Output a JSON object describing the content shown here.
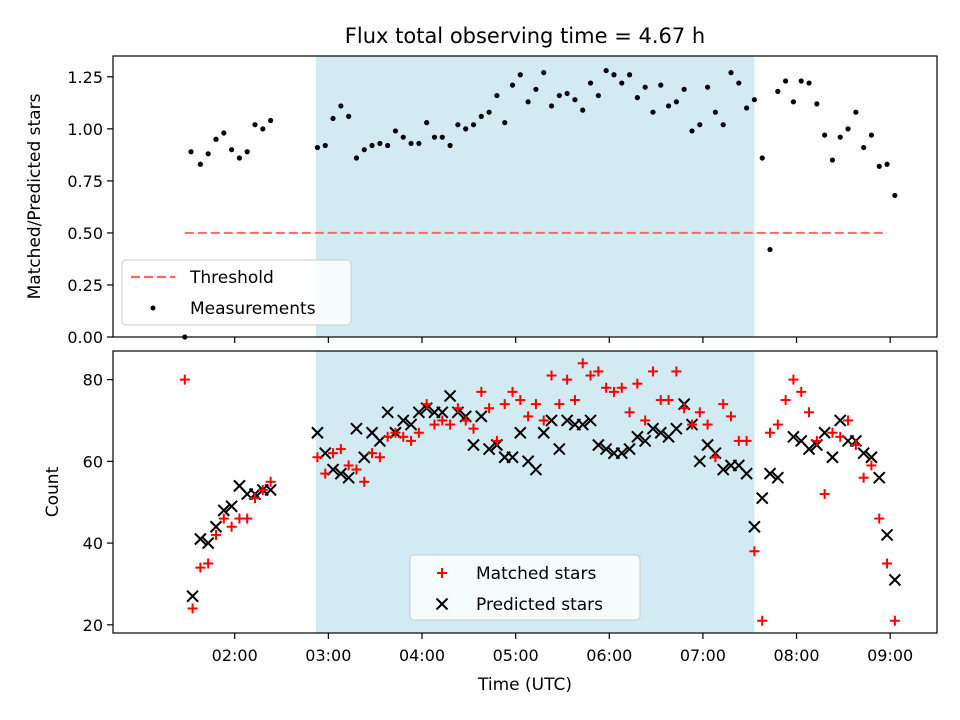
{
  "title": "Flux total observing time = 4.67 h",
  "colors": {
    "threshold": "#ff6666",
    "measurement": "#000000",
    "matched": "#ff0000",
    "predicted": "#000000",
    "shade": "#add8e6"
  },
  "chart_data": [
    {
      "type": "scatter",
      "ylabel": "Matched/Predicted stars",
      "ylim": [
        0,
        1.35
      ],
      "yticks": [
        "0.00",
        "0.25",
        "0.50",
        "0.75",
        "1.00",
        "1.25"
      ],
      "xlim_hours": [
        0.7,
        9.5
      ],
      "shaded_x": [
        "02:52",
        "07:33"
      ],
      "threshold": 0.5,
      "threshold_x": [
        "01:28",
        "08:58"
      ],
      "legend": {
        "location": "lower-left",
        "entries": [
          "Threshold",
          "Measurements"
        ]
      },
      "measurements": [
        [
          "01:28",
          0.0
        ],
        [
          "01:32",
          0.89
        ],
        [
          "01:38",
          0.83
        ],
        [
          "01:43",
          0.88
        ],
        [
          "01:48",
          0.95
        ],
        [
          "01:53",
          0.98
        ],
        [
          "01:58",
          0.9
        ],
        [
          "02:03",
          0.86
        ],
        [
          "02:08",
          0.89
        ],
        [
          "02:13",
          1.02
        ],
        [
          "02:18",
          1.0
        ],
        [
          "02:23",
          1.04
        ],
        [
          "02:53",
          0.91
        ],
        [
          "02:58",
          0.92
        ],
        [
          "03:03",
          1.05
        ],
        [
          "03:08",
          1.11
        ],
        [
          "03:13",
          1.06
        ],
        [
          "03:18",
          0.86
        ],
        [
          "03:23",
          0.9
        ],
        [
          "03:28",
          0.92
        ],
        [
          "03:33",
          0.93
        ],
        [
          "03:38",
          0.92
        ],
        [
          "03:43",
          0.99
        ],
        [
          "03:48",
          0.96
        ],
        [
          "03:53",
          0.93
        ],
        [
          "03:58",
          0.93
        ],
        [
          "04:03",
          1.03
        ],
        [
          "04:08",
          0.96
        ],
        [
          "04:13",
          0.96
        ],
        [
          "04:18",
          0.92
        ],
        [
          "04:23",
          1.02
        ],
        [
          "04:28",
          1.0
        ],
        [
          "04:33",
          1.02
        ],
        [
          "04:38",
          1.06
        ],
        [
          "04:43",
          1.08
        ],
        [
          "04:48",
          1.16
        ],
        [
          "04:53",
          1.03
        ],
        [
          "04:58",
          1.21
        ],
        [
          "05:03",
          1.26
        ],
        [
          "05:08",
          1.13
        ],
        [
          "05:13",
          1.19
        ],
        [
          "05:18",
          1.27
        ],
        [
          "05:23",
          1.11
        ],
        [
          "05:28",
          1.16
        ],
        [
          "05:33",
          1.17
        ],
        [
          "05:38",
          1.14
        ],
        [
          "05:43",
          1.09
        ],
        [
          "05:48",
          1.22
        ],
        [
          "05:53",
          1.16
        ],
        [
          "05:58",
          1.28
        ],
        [
          "06:03",
          1.26
        ],
        [
          "06:08",
          1.22
        ],
        [
          "06:13",
          1.26
        ],
        [
          "06:18",
          1.15
        ],
        [
          "06:23",
          1.2
        ],
        [
          "06:28",
          1.08
        ],
        [
          "06:33",
          1.21
        ],
        [
          "06:38",
          1.11
        ],
        [
          "06:43",
          1.13
        ],
        [
          "06:48",
          1.19
        ],
        [
          "06:53",
          0.99
        ],
        [
          "06:58",
          1.02
        ],
        [
          "07:03",
          1.2
        ],
        [
          "07:08",
          1.08
        ],
        [
          "07:13",
          1.02
        ],
        [
          "07:18",
          1.27
        ],
        [
          "07:23",
          1.22
        ],
        [
          "07:28",
          1.1
        ],
        [
          "07:33",
          1.14
        ],
        [
          "07:38",
          0.86
        ],
        [
          "07:43",
          0.42
        ],
        [
          "07:48",
          1.18
        ],
        [
          "07:53",
          1.23
        ],
        [
          "07:58",
          1.13
        ],
        [
          "08:03",
          1.23
        ],
        [
          "08:08",
          1.22
        ],
        [
          "08:13",
          1.12
        ],
        [
          "08:18",
          0.97
        ],
        [
          "08:23",
          0.85
        ],
        [
          "08:28",
          0.96
        ],
        [
          "08:33",
          1.0
        ],
        [
          "08:38",
          1.08
        ],
        [
          "08:43",
          0.91
        ],
        [
          "08:48",
          0.97
        ],
        [
          "08:53",
          0.82
        ],
        [
          "08:58",
          0.83
        ],
        [
          "09:03",
          0.68
        ]
      ]
    },
    {
      "type": "scatter",
      "xlabel": "Time (UTC)",
      "ylabel": "Count",
      "ylim": [
        18,
        87
      ],
      "yticks": [
        "20",
        "40",
        "60",
        "80"
      ],
      "xlim_hours": [
        0.7,
        9.5
      ],
      "xticks": [
        "02:00",
        "03:00",
        "04:00",
        "05:00",
        "06:00",
        "07:00",
        "08:00",
        "09:00"
      ],
      "shaded_x": [
        "02:52",
        "07:33"
      ],
      "legend": {
        "location": "lower-center",
        "entries": [
          "Matched stars",
          "Predicted stars"
        ]
      },
      "matched": [
        [
          "01:28",
          80
        ],
        [
          "01:33",
          24
        ],
        [
          "01:38",
          34
        ],
        [
          "01:43",
          35
        ],
        [
          "01:48",
          42
        ],
        [
          "01:53",
          46
        ],
        [
          "01:58",
          44
        ],
        [
          "02:03",
          46
        ],
        [
          "02:08",
          46
        ],
        [
          "02:13",
          51
        ],
        [
          "02:18",
          53
        ],
        [
          "02:23",
          55
        ],
        [
          "02:53",
          61
        ],
        [
          "02:58",
          57
        ],
        [
          "03:03",
          62
        ],
        [
          "03:08",
          63
        ],
        [
          "03:13",
          59
        ],
        [
          "03:18",
          58
        ],
        [
          "03:23",
          55
        ],
        [
          "03:28",
          62
        ],
        [
          "03:33",
          61
        ],
        [
          "03:38",
          66
        ],
        [
          "03:43",
          67
        ],
        [
          "03:48",
          66
        ],
        [
          "03:53",
          65
        ],
        [
          "03:58",
          67
        ],
        [
          "04:03",
          74
        ],
        [
          "04:08",
          69
        ],
        [
          "04:13",
          70
        ],
        [
          "04:18",
          69
        ],
        [
          "04:23",
          73
        ],
        [
          "04:28",
          70
        ],
        [
          "04:33",
          68
        ],
        [
          "04:38",
          77
        ],
        [
          "04:43",
          73
        ],
        [
          "04:48",
          65
        ],
        [
          "04:53",
          74
        ],
        [
          "04:58",
          77
        ],
        [
          "05:03",
          75
        ],
        [
          "05:08",
          71
        ],
        [
          "05:13",
          74
        ],
        [
          "05:18",
          70
        ],
        [
          "05:23",
          81
        ],
        [
          "05:28",
          74
        ],
        [
          "05:33",
          80
        ],
        [
          "05:38",
          75
        ],
        [
          "05:43",
          84
        ],
        [
          "05:48",
          81
        ],
        [
          "05:53",
          82
        ],
        [
          "05:58",
          78
        ],
        [
          "06:03",
          77
        ],
        [
          "06:08",
          78
        ],
        [
          "06:13",
          72
        ],
        [
          "06:18",
          79
        ],
        [
          "06:23",
          70
        ],
        [
          "06:28",
          82
        ],
        [
          "06:33",
          75
        ],
        [
          "06:38",
          75
        ],
        [
          "06:43",
          82
        ],
        [
          "06:48",
          73
        ],
        [
          "06:53",
          69
        ],
        [
          "06:58",
          72
        ],
        [
          "07:03",
          69
        ],
        [
          "07:08",
          61
        ],
        [
          "07:13",
          74
        ],
        [
          "07:18",
          71
        ],
        [
          "07:23",
          65
        ],
        [
          "07:28",
          65
        ],
        [
          "07:33",
          38
        ],
        [
          "07:38",
          21
        ],
        [
          "07:43",
          67
        ],
        [
          "07:48",
          69
        ],
        [
          "07:53",
          75
        ],
        [
          "07:58",
          80
        ],
        [
          "08:03",
          77
        ],
        [
          "08:08",
          72
        ],
        [
          "08:13",
          65
        ],
        [
          "08:18",
          52
        ],
        [
          "08:23",
          67
        ],
        [
          "08:28",
          66
        ],
        [
          "08:33",
          70
        ],
        [
          "08:38",
          64
        ],
        [
          "08:43",
          56
        ],
        [
          "08:48",
          59
        ],
        [
          "08:53",
          46
        ],
        [
          "08:58",
          35
        ],
        [
          "09:03",
          21
        ]
      ],
      "predicted": [
        [
          "01:33",
          27
        ],
        [
          "01:38",
          41
        ],
        [
          "01:43",
          40
        ],
        [
          "01:48",
          44
        ],
        [
          "01:53",
          48
        ],
        [
          "01:58",
          49
        ],
        [
          "02:03",
          54
        ],
        [
          "02:08",
          52
        ],
        [
          "02:13",
          52
        ],
        [
          "02:18",
          53
        ],
        [
          "02:23",
          53
        ],
        [
          "02:53",
          67
        ],
        [
          "02:58",
          62
        ],
        [
          "03:03",
          58
        ],
        [
          "03:08",
          57
        ],
        [
          "03:13",
          56
        ],
        [
          "03:18",
          68
        ],
        [
          "03:23",
          61
        ],
        [
          "03:28",
          67
        ],
        [
          "03:33",
          65
        ],
        [
          "03:38",
          72
        ],
        [
          "03:43",
          67
        ],
        [
          "03:48",
          70
        ],
        [
          "03:53",
          69
        ],
        [
          "03:58",
          72
        ],
        [
          "04:03",
          73
        ],
        [
          "04:08",
          72
        ],
        [
          "04:13",
          72
        ],
        [
          "04:18",
          76
        ],
        [
          "04:23",
          72
        ],
        [
          "04:28",
          71
        ],
        [
          "04:33",
          64
        ],
        [
          "04:38",
          71
        ],
        [
          "04:43",
          63
        ],
        [
          "04:48",
          64
        ],
        [
          "04:53",
          61
        ],
        [
          "04:58",
          61
        ],
        [
          "05:03",
          67
        ],
        [
          "05:08",
          60
        ],
        [
          "05:13",
          58
        ],
        [
          "05:18",
          67
        ],
        [
          "05:23",
          70
        ],
        [
          "05:28",
          63
        ],
        [
          "05:33",
          70
        ],
        [
          "05:38",
          69
        ],
        [
          "05:43",
          69
        ],
        [
          "05:48",
          70
        ],
        [
          "05:53",
          64
        ],
        [
          "05:58",
          63
        ],
        [
          "06:03",
          62
        ],
        [
          "06:08",
          62
        ],
        [
          "06:13",
          63
        ],
        [
          "06:18",
          66
        ],
        [
          "06:23",
          65
        ],
        [
          "06:28",
          68
        ],
        [
          "06:33",
          67
        ],
        [
          "06:38",
          66
        ],
        [
          "06:43",
          68
        ],
        [
          "06:48",
          74
        ],
        [
          "06:53",
          69
        ],
        [
          "06:58",
          60
        ],
        [
          "07:03",
          64
        ],
        [
          "07:08",
          62
        ],
        [
          "07:13",
          58
        ],
        [
          "07:18",
          59
        ],
        [
          "07:23",
          59
        ],
        [
          "07:28",
          57
        ],
        [
          "07:33",
          44
        ],
        [
          "07:38",
          51
        ],
        [
          "07:43",
          57
        ],
        [
          "07:48",
          56
        ],
        [
          "07:58",
          66
        ],
        [
          "08:03",
          65
        ],
        [
          "08:08",
          63
        ],
        [
          "08:13",
          64
        ],
        [
          "08:18",
          67
        ],
        [
          "08:23",
          61
        ],
        [
          "08:28",
          70
        ],
        [
          "08:33",
          65
        ],
        [
          "08:38",
          65
        ],
        [
          "08:43",
          62
        ],
        [
          "08:48",
          61
        ],
        [
          "08:53",
          56
        ],
        [
          "08:58",
          42
        ],
        [
          "09:03",
          31
        ]
      ]
    }
  ]
}
